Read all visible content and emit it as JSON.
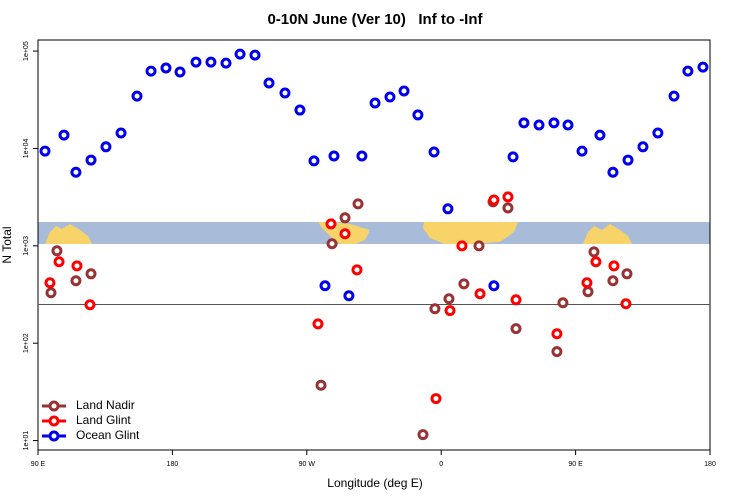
{
  "chart_data": {
    "type": "scatter",
    "title": "0-10N June (Ver 10)   Inf to -Inf",
    "x_label": "Longitude (deg E)",
    "y_label": "N Total",
    "y_scale": "log",
    "xlim": [
      90,
      540
    ],
    "xticks": [
      {
        "value": 90,
        "label": "90 E"
      },
      180,
      {
        "value": 270,
        "label": "90 W"
      },
      {
        "value": 360,
        "label": "0"
      },
      {
        "value": 450,
        "label": "90 E"
      },
      {
        "value": 540,
        "label": "180"
      }
    ],
    "ylim": [
      8,
      130000
    ],
    "yticks": [
      {
        "value": 10,
        "label": "1e+01"
      },
      {
        "value": 100,
        "label": "1e+02"
      },
      {
        "value": 1000,
        "label": "1e+03"
      },
      {
        "value": 10000,
        "label": "1e+04"
      },
      {
        "value": 100000,
        "label": "1e+05"
      }
    ],
    "reference_line": 250,
    "legend": "bottom-left",
    "series": [
      {
        "name": "Land Nadir",
        "color": "#993333",
        "x": [
          98.7,
          102.7,
          115.4,
          125.5,
          286.9,
          295.6,
          304.3,
          279.5,
          347.8,
          355.8,
          365.2,
          375.2,
          385.3,
          404.7,
          410.1,
          437.5,
          441.5,
          458.3,
          462.3,
          475.0,
          484.4,
          394.7
        ],
        "values": [
          330,
          889,
          438,
          516,
          1050,
          1940,
          2700,
          37,
          11.5,
          226,
          286,
          407,
          1000,
          2450,
          141,
          82,
          260,
          338,
          867,
          438,
          516,
          2830
        ]
      },
      {
        "name": "Land Glint",
        "color": "#ff0000",
        "x": [
          98.0,
          104.1,
          116.1,
          124.8,
          277.5,
          286.2,
          295.6,
          303.6,
          356.5,
          365.9,
          373.9,
          386.0,
          395.3,
          404.7,
          410.1,
          437.5,
          457.6,
          463.6,
          475.7,
          483.7
        ],
        "values": [
          418,
          686,
          623,
          248,
          158,
          1680,
          1330,
          567,
          27,
          216,
          1000,
          322,
          2960,
          3180,
          279,
          125,
          418,
          686,
          623,
          254
        ]
      },
      {
        "name": "Ocean Glint",
        "color": "#0000ee",
        "x": [
          94.7,
          107.4,
          115.4,
          125.5,
          135.5,
          145.6,
          156.3,
          165.7,
          175.7,
          185.1,
          195.8,
          205.8,
          215.9,
          225.3,
          235.3,
          244.7,
          255.4,
          265.4,
          274.8,
          282.2,
          288.2,
          298.2,
          306.9,
          315.7,
          325.7,
          335.1,
          344.4,
          355.2,
          364.5,
          395.3,
          408.1,
          415.4,
          425.5,
          435.5,
          444.9,
          454.3,
          466.3,
          475.0,
          485.1,
          495.1,
          505.1,
          515.9,
          525.2,
          535.3
        ],
        "values": [
          9400,
          13700,
          5700,
          7600,
          10400,
          14400,
          34500,
          62300,
          67000,
          61000,
          77100,
          77100,
          75300,
          93100,
          91000,
          47000,
          37100,
          24800,
          7450,
          389,
          8370,
          307,
          8370,
          29300,
          33800,
          38900,
          22100,
          9200,
          2400,
          389,
          8190,
          18300,
          17400,
          18300,
          17400,
          9400,
          13700,
          5700,
          7600,
          10400,
          14400,
          34500,
          62300,
          68500
        ]
      }
    ]
  }
}
